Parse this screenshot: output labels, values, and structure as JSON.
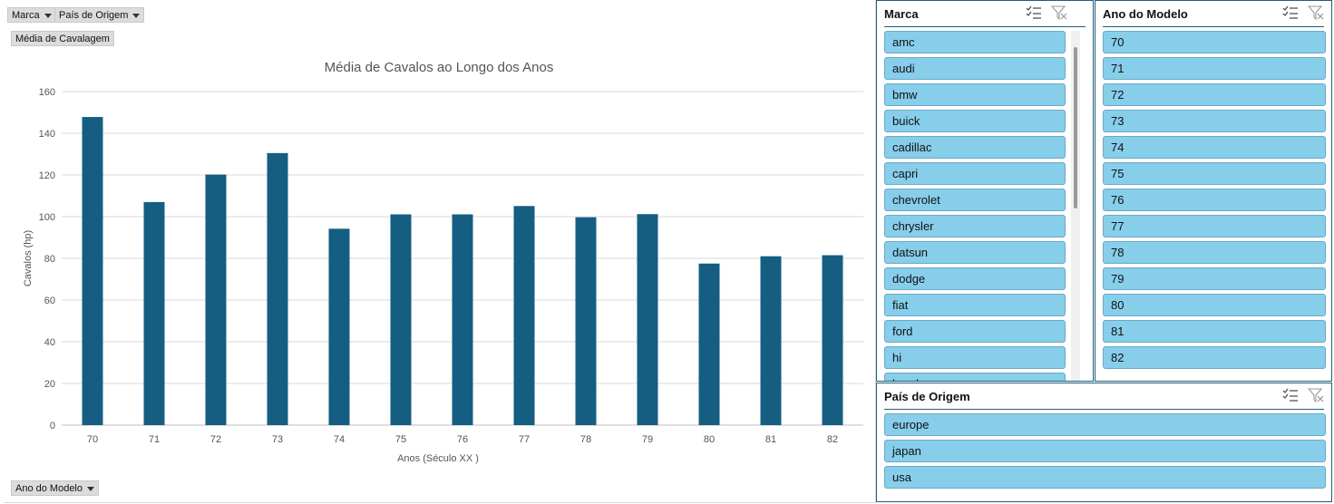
{
  "pivot_buttons": {
    "marca": "Marca",
    "pais": "País de Origem",
    "media": "Média de Cavalagem",
    "ano": "Ano do Modelo"
  },
  "chart_data": {
    "type": "bar",
    "title": "Média de Cavalos ao Longo dos Anos",
    "xlabel": "Anos (Século XX )",
    "ylabel": "Cavalos (hp)",
    "categories": [
      "70",
      "71",
      "72",
      "73",
      "74",
      "75",
      "76",
      "77",
      "78",
      "79",
      "80",
      "81",
      "82"
    ],
    "values": [
      147.8,
      107.0,
      120.2,
      130.5,
      94.2,
      101.1,
      101.1,
      105.1,
      99.7,
      101.2,
      77.5,
      81.0,
      81.5
    ],
    "ylim": [
      0,
      160
    ],
    "yticks": [
      0,
      20,
      40,
      60,
      80,
      100,
      120,
      140,
      160
    ],
    "grid": true,
    "bar_color": "#155e82"
  },
  "slicers": {
    "marca": {
      "title": "Marca",
      "items": [
        "amc",
        "audi",
        "bmw",
        "buick",
        "cadillac",
        "capri",
        "chevrolet",
        "chrysler",
        "datsun",
        "dodge",
        "fiat",
        "ford",
        "hi",
        "honda"
      ]
    },
    "ano": {
      "title": "Ano do Modelo",
      "items": [
        "70",
        "71",
        "72",
        "73",
        "74",
        "75",
        "76",
        "77",
        "78",
        "79",
        "80",
        "81",
        "82"
      ]
    },
    "pais": {
      "title": "País de Origem",
      "items": [
        "europe",
        "japan",
        "usa"
      ]
    }
  },
  "colors": {
    "slicer_item": "#87ceeb",
    "slicer_border": "#1f5f7a"
  },
  "icons": {
    "multi_select": "multi-select-icon",
    "clear_filter": "clear-filter-icon"
  }
}
